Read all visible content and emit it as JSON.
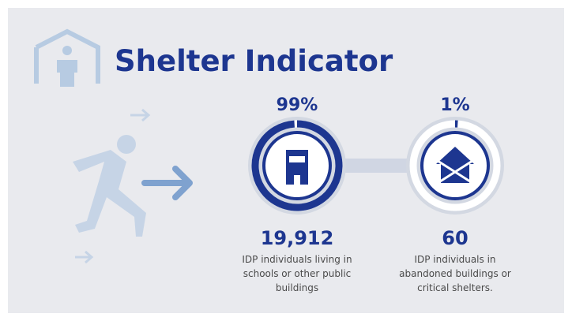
{
  "title": "Shelter Indicator",
  "items": [
    {
      "percent": {
        "value": 99,
        "label": "99%"
      },
      "count": {
        "value": 19912,
        "label": "19,912"
      },
      "description": "IDP individuals living in schools or other public buildings"
    },
    {
      "percent": {
        "value": 1,
        "label": "1%"
      },
      "count": 60,
      "description": "IDP individuals in abandoned buildings or critical shelters."
    }
  ]
}
